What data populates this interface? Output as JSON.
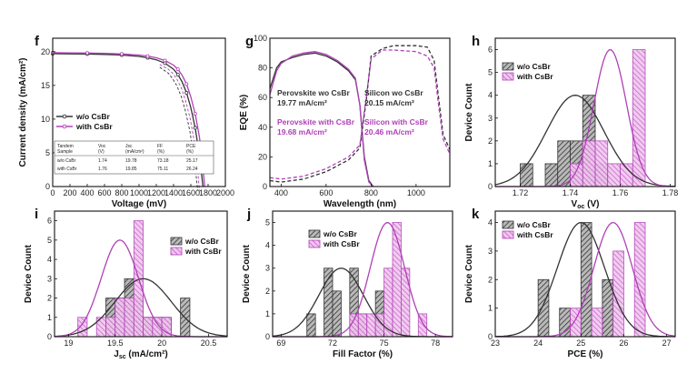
{
  "colors": {
    "black": "#333333",
    "purple": "#b040b8",
    "gray": "#555555"
  },
  "chart_data": [
    {
      "id": "f",
      "type": "line",
      "panel_label": "f",
      "xlabel": "Voltage (mV)",
      "ylabel": "Current density (mA/cm²)",
      "xlim": [
        0,
        2000
      ],
      "ylim": [
        0,
        22
      ],
      "xticks": [
        0,
        200,
        400,
        600,
        800,
        1000,
        1200,
        1400,
        1600,
        1800,
        2000
      ],
      "yticks": [
        0,
        5,
        10,
        15,
        20
      ],
      "xtick_labels": [
        "0",
        "200",
        "400",
        "600",
        "800",
        "1000",
        "1200",
        "1400",
        "1600",
        "1800",
        "2000"
      ],
      "ytick_labels": [
        "0",
        "5",
        "10",
        "15",
        "20"
      ],
      "legend": [
        "w/o CsBr",
        "with CsBr"
      ],
      "series": [
        {
          "name": "w/o CsBr",
          "color": "#333333",
          "x": [
            0,
            200,
            400,
            600,
            800,
            1000,
            1100,
            1200,
            1300,
            1400,
            1450,
            1500,
            1550,
            1600,
            1650,
            1700,
            1720,
            1740
          ],
          "y": [
            19.7,
            19.68,
            19.65,
            19.6,
            19.5,
            19.3,
            19.1,
            18.8,
            18.3,
            17.4,
            16.6,
            15.5,
            13.9,
            11.7,
            8.7,
            4.6,
            2.4,
            0
          ]
        },
        {
          "name": "with CsBr",
          "color": "#b040b8",
          "x": [
            0,
            200,
            400,
            600,
            800,
            1000,
            1100,
            1200,
            1300,
            1400,
            1450,
            1500,
            1550,
            1600,
            1650,
            1700,
            1730,
            1760
          ],
          "y": [
            19.85,
            19.82,
            19.8,
            19.76,
            19.67,
            19.5,
            19.35,
            19.1,
            18.7,
            18.0,
            17.4,
            16.5,
            15.2,
            13.3,
            10.8,
            7.3,
            4.3,
            0
          ]
        }
      ],
      "table": {
        "headers": [
          [
            "Tandem",
            "Sample"
          ],
          [
            "Voc",
            "(V)"
          ],
          [
            "Jsc",
            "(mA/cm²)"
          ],
          [
            "FF",
            "(%)"
          ],
          [
            "PCE",
            "(%)"
          ]
        ],
        "rows": [
          [
            "w/o CsBr",
            "1.74",
            "19.78",
            "73.18",
            "25.17"
          ],
          [
            "with CsBr",
            "1.76",
            "19.85",
            "75.11",
            "26.24"
          ]
        ]
      }
    },
    {
      "id": "g",
      "type": "line",
      "panel_label": "g",
      "xlabel": "Wavelength (nm)",
      "ylabel": "EQE (%)",
      "xlim": [
        350,
        1150
      ],
      "ylim": [
        0,
        100
      ],
      "xticks": [
        400,
        600,
        800,
        1000
      ],
      "yticks": [
        0,
        20,
        40,
        60,
        80,
        100
      ],
      "xtick_labels": [
        "400",
        "600",
        "800",
        "1000"
      ],
      "ytick_labels": [
        "0",
        "20",
        "40",
        "60",
        "80",
        "100"
      ],
      "annotations": [
        {
          "lines": [
            "Perovskite wo CsBr",
            "19.77 mA/cm²"
          ],
          "color": "#333333"
        },
        {
          "lines": [
            "Perovskite with CsBr",
            "19.68 mA/cm²"
          ],
          "color": "#b040b8"
        },
        {
          "lines": [
            "Silicon wo CsBr",
            "20.15 mA/cm²"
          ],
          "color": "#333333"
        },
        {
          "lines": [
            "Silicon with CsBr",
            "20.46 mA/cm²"
          ],
          "color": "#b040b8"
        }
      ],
      "series": [
        {
          "name": "Perovskite wo CsBr",
          "color": "#333333",
          "dash": false,
          "x": [
            350,
            380,
            400,
            450,
            500,
            550,
            600,
            650,
            700,
            730,
            750,
            770,
            790,
            810
          ],
          "y": [
            66,
            80,
            84,
            87,
            89,
            90,
            88,
            84,
            78,
            72,
            55,
            20,
            4,
            0
          ]
        },
        {
          "name": "Perovskite with CsBr",
          "color": "#b040b8",
          "dash": false,
          "x": [
            350,
            380,
            400,
            450,
            500,
            550,
            600,
            650,
            700,
            730,
            750,
            770,
            790,
            810
          ],
          "y": [
            62,
            78,
            83,
            88,
            90,
            91,
            89,
            85,
            79,
            73,
            55,
            18,
            3,
            0
          ]
        },
        {
          "name": "Silicon wo CsBr",
          "color": "#333333",
          "dash": true,
          "x": [
            350,
            400,
            500,
            600,
            700,
            750,
            780,
            800,
            850,
            900,
            1000,
            1050,
            1080,
            1100,
            1120,
            1150
          ],
          "y": [
            4,
            3,
            5,
            10,
            18,
            26,
            60,
            88,
            93,
            95,
            95,
            94,
            85,
            60,
            35,
            25
          ]
        },
        {
          "name": "Silicon with CsBr",
          "color": "#b040b8",
          "dash": true,
          "x": [
            350,
            400,
            500,
            600,
            700,
            750,
            780,
            800,
            850,
            900,
            1000,
            1050,
            1080,
            1100,
            1120,
            1150
          ],
          "y": [
            6,
            5,
            7,
            12,
            20,
            28,
            62,
            86,
            92,
            92,
            91,
            88,
            80,
            55,
            32,
            22
          ]
        }
      ]
    },
    {
      "id": "h",
      "type": "bar",
      "panel_label": "h",
      "xlabel": "Voc (V)",
      "ylabel": "Device Count",
      "xlim": [
        1.71,
        1.782
      ],
      "ylim": [
        0,
        6.5
      ],
      "bin_width": 0.005,
      "xticks": [
        1.72,
        1.74,
        1.76,
        1.78
      ],
      "yticks": [
        0,
        1,
        2,
        3,
        4,
        5,
        6
      ],
      "xtick_labels": [
        "1.72",
        "1.74",
        "1.76",
        "1.78"
      ],
      "ytick_labels": [
        "0",
        "1",
        "2",
        "3",
        "4",
        "5",
        "6"
      ],
      "legend": [
        "w/o CsBr",
        "with CsBr"
      ],
      "series": [
        {
          "name": "w/o CsBr",
          "color": "#333333",
          "bins": [
            1.72,
            1.73,
            1.735,
            1.74,
            1.745,
            1.75
          ],
          "counts": [
            1,
            1,
            2,
            2,
            4,
            1
          ],
          "fit": {
            "mu": 1.742,
            "sigma": 0.0115,
            "peak": 4.0
          }
        },
        {
          "name": "with CsBr",
          "color": "#b040b8",
          "bins": [
            1.74,
            1.745,
            1.75,
            1.755,
            1.76,
            1.765
          ],
          "counts": [
            1,
            2,
            2,
            1,
            1,
            6
          ],
          "fit": {
            "mu": 1.756,
            "sigma": 0.0065,
            "peak": 6.0
          }
        }
      ]
    },
    {
      "id": "i",
      "type": "bar",
      "panel_label": "i",
      "xlabel": "Jsc (mA/cm²)",
      "ylabel": "Device Count",
      "xlim": [
        18.85,
        20.7
      ],
      "ylim": [
        0,
        6.5
      ],
      "bin_width": 0.1,
      "xticks": [
        19,
        19.5,
        20,
        20.5
      ],
      "yticks": [
        0,
        1,
        2,
        3,
        4,
        5,
        6
      ],
      "xtick_labels": [
        "19",
        "19.5",
        "20",
        "20.5"
      ],
      "ytick_labels": [
        "0",
        "1",
        "2",
        "3",
        "4",
        "5",
        "6"
      ],
      "legend": [
        "w/o CsBr",
        "with CsBr"
      ],
      "series": [
        {
          "name": "w/o CsBr",
          "color": "#333333",
          "bins": [
            19.4,
            19.5,
            19.6,
            19.7,
            19.8,
            19.9,
            20.0,
            20.2
          ],
          "counts": [
            2,
            2,
            3,
            2,
            1,
            1,
            1,
            2
          ],
          "fit": {
            "mu": 19.8,
            "sigma": 0.3,
            "peak": 3.0
          }
        },
        {
          "name": "with CsBr",
          "color": "#b040b8",
          "bins": [
            19.1,
            19.3,
            19.4,
            19.5,
            19.6,
            19.7,
            19.8,
            19.9,
            20.0
          ],
          "counts": [
            1,
            1,
            1,
            2,
            2,
            6,
            1,
            1,
            1
          ],
          "fit": {
            "mu": 19.55,
            "sigma": 0.2,
            "peak": 5.0
          }
        }
      ]
    },
    {
      "id": "j",
      "type": "bar",
      "panel_label": "j",
      "xlabel": "Fill Factor (%)",
      "ylabel": "Device Count",
      "xlim": [
        68.5,
        79
      ],
      "ylim": [
        0,
        5.5
      ],
      "bin_width": 0.5,
      "xticks": [
        69,
        72,
        75,
        78
      ],
      "yticks": [
        0,
        1,
        2,
        3,
        4,
        5
      ],
      "xtick_labels": [
        "69",
        "72",
        "75",
        "78"
      ],
      "ytick_labels": [
        "0",
        "1",
        "2",
        "3",
        "4",
        "5"
      ],
      "legend": [
        "w/o CsBr",
        "with CsBr"
      ],
      "series": [
        {
          "name": "w/o CsBr",
          "color": "#333333",
          "bins": [
            70.5,
            71.5,
            72.0,
            73.0,
            73.5,
            74.5
          ],
          "counts": [
            1,
            3,
            2,
            3,
            1,
            2
          ],
          "fit": {
            "mu": 72.5,
            "sigma": 1.3,
            "peak": 3.0
          }
        },
        {
          "name": "with CsBr",
          "color": "#b040b8",
          "bins": [
            73.0,
            73.5,
            74.0,
            74.5,
            75.0,
            75.5,
            76.0,
            77.0
          ],
          "counts": [
            1,
            1,
            1,
            1,
            3,
            5,
            3,
            1
          ],
          "fit": {
            "mu": 75.2,
            "sigma": 1.0,
            "peak": 5.0
          }
        }
      ]
    },
    {
      "id": "k",
      "type": "bar",
      "panel_label": "k",
      "xlabel": "PCE (%)",
      "ylabel": "Device Count",
      "xlim": [
        23,
        27.2
      ],
      "ylim": [
        0,
        4.4
      ],
      "bin_width": 0.25,
      "xticks": [
        23,
        24,
        25,
        26,
        27
      ],
      "yticks": [
        0,
        1,
        2,
        3,
        4
      ],
      "xtick_labels": [
        "23",
        "24",
        "25",
        "26",
        "27"
      ],
      "ytick_labels": [
        "0",
        "1",
        "2",
        "3",
        "4"
      ],
      "legend": [
        "w/o CsBr",
        "with CsBr"
      ],
      "series": [
        {
          "name": "w/o CsBr",
          "color": "#333333",
          "bins": [
            24.0,
            24.5,
            25.0,
            25.5
          ],
          "counts": [
            2,
            1,
            4,
            2
          ],
          "fit": {
            "mu": 25.0,
            "sigma": 0.55,
            "peak": 4.0
          }
        },
        {
          "name": "with CsBr",
          "color": "#b040b8",
          "bins": [
            24.75,
            25.25,
            25.75,
            26.25
          ],
          "counts": [
            1,
            1,
            3,
            4
          ],
          "fit": {
            "mu": 25.75,
            "sigma": 0.45,
            "peak": 4.0
          }
        }
      ]
    }
  ]
}
